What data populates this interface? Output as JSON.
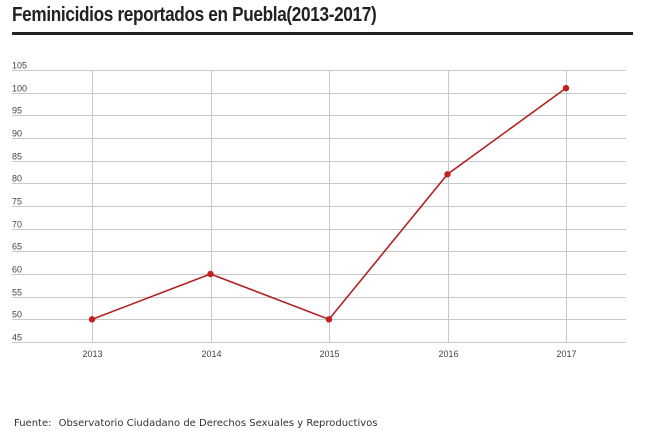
{
  "title": "Feminicidios reportados en Puebla(2013-2017)",
  "source": {
    "label": "Fuente:",
    "text": "Observatorio Ciudadano de Derechos Sexuales y Reproductivos"
  },
  "colors": {
    "line": "#b22222",
    "point": "#c41e1e",
    "grid": "#c8c8c8",
    "axis": "#999999"
  },
  "chart_data": {
    "type": "line",
    "x": [
      "2013",
      "2014",
      "2015",
      "2016",
      "2017"
    ],
    "series": [
      {
        "values": [
          50,
          60,
          50,
          82,
          101
        ]
      }
    ],
    "ylim": [
      45,
      105
    ],
    "yticks": [
      45,
      50,
      55,
      60,
      65,
      70,
      75,
      80,
      85,
      90,
      95,
      100,
      105
    ],
    "grid": true,
    "legend": "none"
  }
}
